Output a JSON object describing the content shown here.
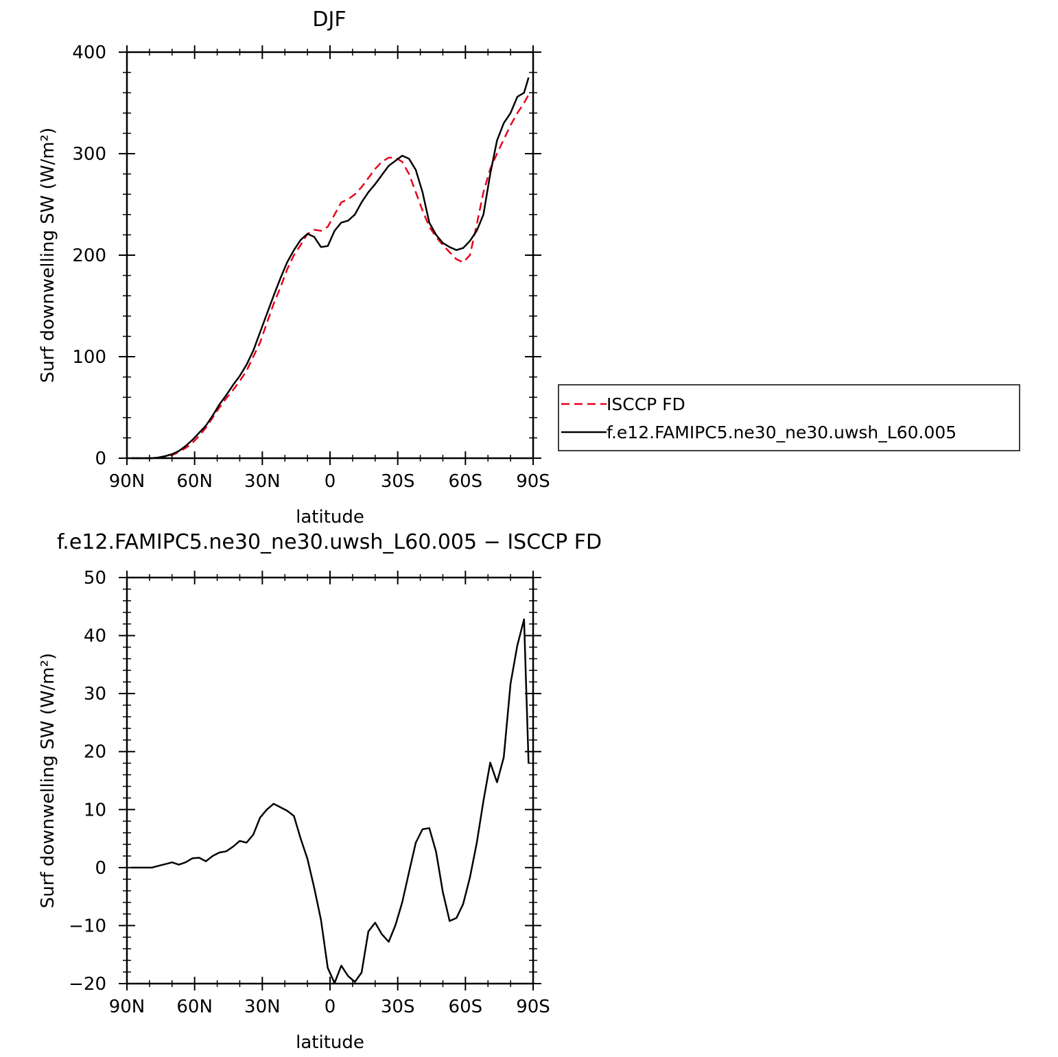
{
  "chart_data": [
    {
      "type": "line",
      "title": "DJF",
      "xlabel": "latitude",
      "ylabel": "Surf downwelling SW (W/m²)",
      "xlim": [
        90,
        -90
      ],
      "ylim": [
        0,
        400
      ],
      "x_ticks": [
        90,
        60,
        30,
        0,
        -30,
        -60,
        -90
      ],
      "x_tick_labels": [
        "90N",
        "60N",
        "30N",
        "0",
        "30S",
        "60S",
        "90S"
      ],
      "y_ticks": [
        0,
        100,
        200,
        300,
        400
      ],
      "y_tick_labels": [
        "0",
        "100",
        "200",
        "300",
        "400"
      ],
      "legend": {
        "placement": "right"
      },
      "series": [
        {
          "name": "ISCCP FD",
          "color": "#e8001c",
          "dash": "dashed",
          "x": [
            88,
            85,
            82,
            79,
            76,
            73,
            70,
            67,
            64,
            61,
            58,
            55,
            52,
            49,
            46,
            43,
            40,
            37,
            34,
            31,
            28,
            25,
            22,
            19,
            16,
            13,
            10,
            7,
            4,
            1,
            -2,
            -5,
            -8,
            -11,
            -14,
            -17,
            -20,
            -23,
            -26,
            -29,
            -32,
            -35,
            -38,
            -41,
            -44,
            -47,
            -50,
            -53,
            -56,
            -59,
            -62,
            -65,
            -68,
            -71,
            -74,
            -77,
            -80,
            -83,
            -86,
            -88
          ],
          "y": [
            0,
            0,
            0,
            0,
            0.4,
            1.5,
            3,
            6,
            10,
            15,
            22,
            30,
            40,
            50,
            59,
            67,
            76,
            86,
            100,
            114,
            133,
            152,
            168,
            186,
            200,
            210,
            221,
            225,
            224,
            228,
            240,
            252,
            255,
            260,
            267,
            276,
            285,
            292,
            296,
            296,
            292,
            280,
            262,
            244,
            228,
            218,
            210,
            203,
            196,
            193,
            200,
            230,
            262,
            285,
            300,
            314,
            328,
            340,
            350,
            358
          ]
        },
        {
          "name": "f.e12.FAMIPC5.ne30_ne30.uwsh_L60.005",
          "color": "#000000",
          "dash": "solid",
          "x": [
            88,
            85,
            82,
            79,
            76,
            73,
            70,
            67,
            64,
            61,
            58,
            55,
            52,
            49,
            46,
            43,
            40,
            37,
            34,
            31,
            28,
            25,
            22,
            19,
            16,
            13,
            10,
            7,
            4,
            1,
            -2,
            -5,
            -8,
            -11,
            -14,
            -17,
            -20,
            -23,
            -26,
            -29,
            -32,
            -35,
            -38,
            -41,
            -44,
            -47,
            -50,
            -53,
            -56,
            -59,
            -62,
            -65,
            -68,
            -71,
            -74,
            -77,
            -80,
            -83,
            -86,
            -88
          ],
          "y": [
            0,
            0,
            0,
            0,
            0.7,
            2,
            4,
            7,
            12,
            18,
            25,
            32,
            42,
            53,
            62,
            72,
            81,
            92,
            106,
            124,
            142,
            160,
            177,
            193,
            205,
            215,
            221,
            218,
            208,
            209,
            224,
            232,
            234,
            240,
            252,
            262,
            270,
            279,
            288,
            293,
            298,
            295,
            284,
            262,
            232,
            220,
            212,
            208,
            205,
            207,
            214,
            224,
            240,
            280,
            313,
            330,
            340,
            356,
            360,
            375
          ]
        }
      ]
    },
    {
      "type": "line",
      "title": "f.e12.FAMIPC5.ne30_ne30.uwsh_L60.005 − ISCCP FD",
      "xlabel": "latitude",
      "ylabel": "Surf downwelling SW (W/m²)",
      "xlim": [
        90,
        -90
      ],
      "ylim": [
        -20,
        50
      ],
      "x_ticks": [
        90,
        60,
        30,
        0,
        -30,
        -60,
        -90
      ],
      "x_tick_labels": [
        "90N",
        "60N",
        "30N",
        "0",
        "30S",
        "60S",
        "90S"
      ],
      "y_ticks": [
        -20,
        -10,
        0,
        10,
        20,
        30,
        40,
        50
      ],
      "y_tick_labels": [
        "−20",
        "−10",
        "0",
        "10",
        "20",
        "30",
        "40",
        "50"
      ],
      "series": [
        {
          "color": "#000000",
          "dash": "solid",
          "x": [
            88,
            85,
            82,
            79,
            76,
            73,
            70,
            67,
            64,
            61,
            58,
            55,
            52,
            49,
            46,
            43,
            40,
            37,
            34,
            31,
            28,
            25,
            22,
            19,
            16,
            13,
            10,
            7,
            4,
            1,
            -2,
            -5,
            -8,
            -11,
            -14,
            -17,
            -20,
            -23,
            -26,
            -29,
            -32,
            -35,
            -38,
            -41,
            -44,
            -47,
            -50,
            -53,
            -56,
            -59,
            -62,
            -65,
            -68,
            -71,
            -74,
            -77,
            -80,
            -83,
            -86,
            -88
          ],
          "y": [
            0,
            0,
            0,
            0,
            0.3,
            0.6,
            0.9,
            0.5,
            0.9,
            1.6,
            1.7,
            1.1,
            2.0,
            2.6,
            2.8,
            3.6,
            4.6,
            4.3,
            5.7,
            8.6,
            10.0,
            11.0,
            10.4,
            9.8,
            8.9,
            5.0,
            1.5,
            -3.5,
            -9.0,
            -17.3,
            -19.9,
            -16.9,
            -18.7,
            -19.7,
            -18.1,
            -11.0,
            -9.5,
            -11.5,
            -12.8,
            -9.9,
            -6.0,
            -0.8,
            4.3,
            6.6,
            6.8,
            2.7,
            -4.2,
            -9.2,
            -8.7,
            -6.3,
            -1.7,
            4.2,
            11.5,
            18.1,
            14.7,
            19.0,
            31.7,
            38.3,
            42.8,
            17.9
          ]
        }
      ]
    }
  ]
}
